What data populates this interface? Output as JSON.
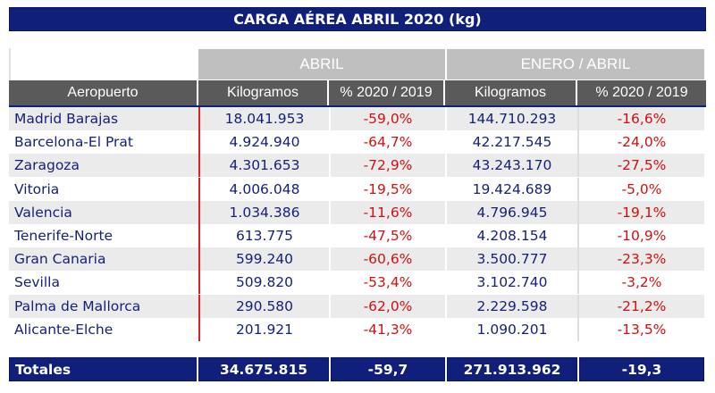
{
  "title": "CARGA AÉREA ABRIL 2020 (kg)",
  "groups": [
    "ABRIL",
    "ENERO / ABRIL"
  ],
  "columns": [
    "Aeropuerto",
    "Kilogramos",
    "% 2020 / 2019",
    "Kilogramos",
    "% 2020 / 2019"
  ],
  "rows": [
    [
      "Madrid Barajas",
      "18.041.953",
      "-59,0%",
      "144.710.293",
      "-16,6%"
    ],
    [
      "Barcelona-El Prat",
      "4.924.940",
      "-64,7%",
      "42.217.545",
      "-24,0%"
    ],
    [
      "Zaragoza",
      "4.301.653",
      "-72,9%",
      "43.243.170",
      "-27,5%"
    ],
    [
      "Vitoria",
      "4.006.048",
      "-19,5%",
      "19.424.689",
      "-5,0%"
    ],
    [
      "Valencia",
      "1.034.386",
      "-11,6%",
      "4.796.945",
      "-19,1%"
    ],
    [
      "Tenerife-Norte",
      "613.775",
      "-47,5%",
      "4.208.154",
      "-10,9%"
    ],
    [
      "Gran Canaria",
      "599.240",
      "-60,6%",
      "3.500.777",
      "-23,3%"
    ],
    [
      "Sevilla",
      "509.820",
      "-53,4%",
      "3.102.740",
      "-3,2%"
    ],
    [
      "Palma de Mallorca",
      "290.580",
      "-62,0%",
      "2.229.598",
      "-21,2%"
    ],
    [
      "Alicante-Elche",
      "201.921",
      "-41,3%",
      "1.090.201",
      "-13,5%"
    ]
  ],
  "totals": [
    "Totales",
    "34.675.815",
    "-59,7",
    "271.913.962",
    "-19,3"
  ]
}
